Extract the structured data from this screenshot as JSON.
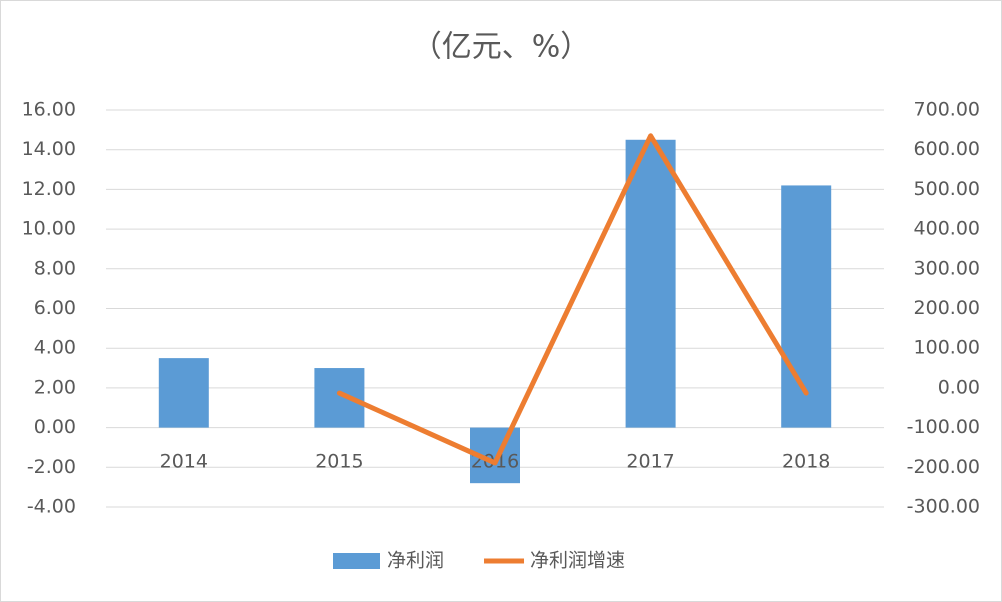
{
  "chart_data": {
    "type": "bar-line",
    "title": "（亿元、%）",
    "categories": [
      "2014",
      "2015",
      "2016",
      "2017",
      "2018"
    ],
    "series": [
      {
        "name": "净利润",
        "color": "#5b9bd5",
        "type": "bar",
        "values": [
          3.5,
          3.0,
          -2.8,
          14.5,
          12.2
        ]
      },
      {
        "name": "净利润增速",
        "color": "#ed7d31",
        "type": "line",
        "axis": "y2",
        "values": [
          null,
          -13,
          -189,
          635,
          -13
        ]
      }
    ],
    "ylim": [
      -4,
      16
    ],
    "yticks": [
      {
        "value": -4,
        "label": "-4.00"
      },
      {
        "value": -2,
        "label": "-2.00"
      },
      {
        "value": 0,
        "label": "0.00"
      },
      {
        "value": 2,
        "label": "2.00"
      },
      {
        "value": 4,
        "label": "4.00"
      },
      {
        "value": 6,
        "label": "6.00"
      },
      {
        "value": 8,
        "label": "8.00"
      },
      {
        "value": 10,
        "label": "10.00"
      },
      {
        "value": 12,
        "label": "12.00"
      },
      {
        "value": 14,
        "label": "14.00"
      },
      {
        "value": 16,
        "label": "16.00"
      }
    ],
    "y2lim": [
      -300,
      700
    ],
    "y2ticks": [
      {
        "value": -300,
        "label": "-300.00"
      },
      {
        "value": -200,
        "label": "-200.00"
      },
      {
        "value": -100,
        "label": "-100.00"
      },
      {
        "value": 0,
        "label": "0.00"
      },
      {
        "value": 100,
        "label": "100.00"
      },
      {
        "value": 200,
        "label": "200.00"
      },
      {
        "value": 300,
        "label": "300.00"
      },
      {
        "value": 400,
        "label": "400.00"
      },
      {
        "value": 500,
        "label": "500.00"
      },
      {
        "value": 600,
        "label": "600.00"
      },
      {
        "value": 700,
        "label": "700.00"
      }
    ],
    "grid": true,
    "legend": "bottom"
  }
}
